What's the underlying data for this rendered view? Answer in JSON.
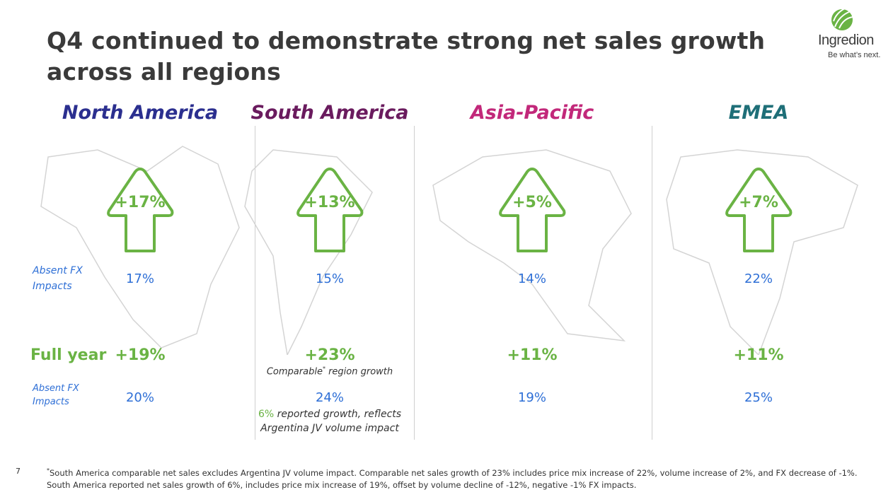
{
  "slide": {
    "title_line1": "Q4 continued to demonstrate strong net sales growth",
    "title_line2": "across all regions",
    "page_number": "7"
  },
  "logo": {
    "name": "Ingredion",
    "tagline": "Be what’s next.",
    "color": "#6ab344"
  },
  "labels": {
    "absent_fx_line1": "Absent FX",
    "absent_fx_line2": "Impacts",
    "full_year": "Full year"
  },
  "regions": [
    {
      "name": "North America",
      "color": "#2b2f8f",
      "q4_growth": "+17%",
      "q4_absent_fx": "17%",
      "fy_growth": "+19%",
      "fy_absent_fx": "20%"
    },
    {
      "name": "South America",
      "color": "#6a1b5e",
      "q4_growth": "+13%",
      "q4_absent_fx": "15%",
      "fy_growth": "+23%",
      "fy_absent_fx": "24%",
      "fy_note_pre": "Comparable",
      "fy_note_mark": "*",
      "fy_note_post": " region growth",
      "reported_pct": "6%",
      "reported_text": " reported growth, reflects",
      "reported_text2": "Argentina JV volume impact"
    },
    {
      "name": "Asia-Pacific",
      "color": "#c2287a",
      "q4_growth": "+5%",
      "q4_absent_fx": "14%",
      "fy_growth": "+11%",
      "fy_absent_fx": "19%"
    },
    {
      "name": "EMEA",
      "color": "#1f6f78",
      "q4_growth": "+7%",
      "q4_absent_fx": "22%",
      "fy_growth": "+11%",
      "fy_absent_fx": "25%"
    }
  ],
  "footer": {
    "mark": "*",
    "line1": "South America comparable net sales excludes Argentina JV volume impact. Comparable net sales growth of 23% includes price mix increase of 22%, volume increase of 2%, and FX decrease of -1%.",
    "line2": "South America reported net sales growth of 6%, includes price mix increase of 19%, offset by volume decline of -12%, negative -1% FX impacts."
  },
  "colors": {
    "growth_green": "#6ab344",
    "absent_fx_blue": "#2e6fd6"
  }
}
